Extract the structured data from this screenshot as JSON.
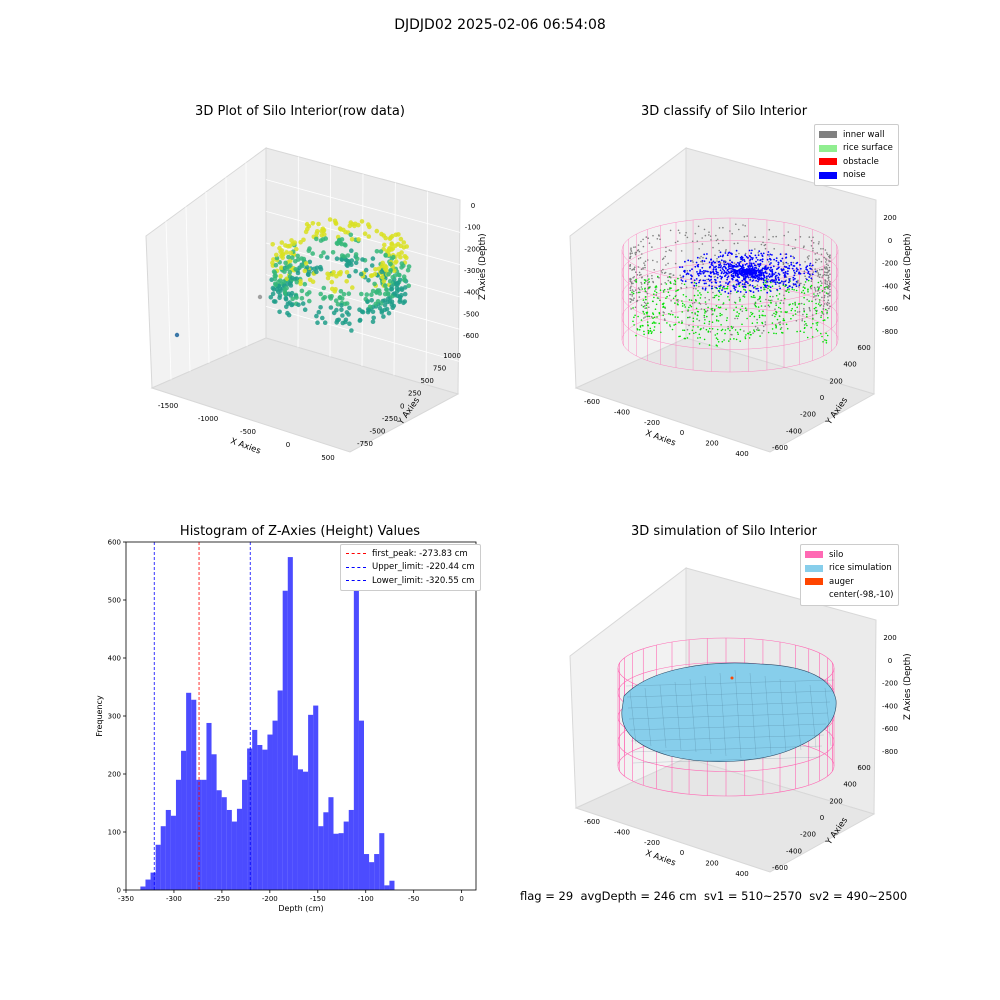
{
  "suptitle": "DJDJD02 2025-02-06 06:54:08",
  "panels": {
    "raw": {
      "title": "3D Plot of Silo Interior(row data)",
      "xlabel": "X Axies",
      "ylabel": "Y Axies",
      "zlabel": "Z Axies (Depth)",
      "xticks": [
        "-1500",
        "-1000",
        "-500",
        "0",
        "500"
      ],
      "yticks": [
        "-750",
        "-500",
        "-250",
        "0",
        "250",
        "500",
        "750",
        "1000"
      ],
      "zticks": [
        "0",
        "-100",
        "-200",
        "-300",
        "-400",
        "-500",
        "-600"
      ]
    },
    "classify": {
      "title": "3D classify of Silo Interior",
      "xlabel": "X Axies",
      "ylabel": "Y Axies",
      "zlabel": "Z Axies (Depth)",
      "xticks": [
        "-600",
        "-400",
        "-200",
        "0",
        "200",
        "400"
      ],
      "yticks": [
        "-600",
        "-400",
        "-200",
        "0",
        "200",
        "400",
        "600"
      ],
      "zticks": [
        "200",
        "0",
        "-200",
        "-400",
        "-600",
        "-800"
      ],
      "legend": [
        {
          "label": "inner wall",
          "color": "#808080"
        },
        {
          "label": "rice surface",
          "color": "#90ee90"
        },
        {
          "label": "obstacle",
          "color": "#ff0000"
        },
        {
          "label": "noise",
          "color": "#0000ff"
        }
      ]
    },
    "simulation": {
      "title": "3D simulation of Silo Interior",
      "xlabel": "X Axies",
      "ylabel": "Y Axies",
      "zlabel": "Z Axies (Depth)",
      "xticks": [
        "-600",
        "-400",
        "-200",
        "0",
        "200",
        "400"
      ],
      "yticks": [
        "-600",
        "-400",
        "-200",
        "0",
        "200",
        "400",
        "600"
      ],
      "zticks": [
        "200",
        "0",
        "-200",
        "-400",
        "-600",
        "-800"
      ],
      "legend": [
        {
          "label": "silo",
          "color": "#ff69b4"
        },
        {
          "label": "rice simulation",
          "color": "#87ceeb"
        },
        {
          "label": "auger",
          "color": "#ff4500"
        },
        {
          "label": "center(-98,-10)",
          "color": ""
        }
      ]
    }
  },
  "status_text": "flag = 29  avgDepth = 246 cm  sv1 = 510~2570  sv2 = 490~2500",
  "chart_data": {
    "type": "bar",
    "title": "Histogram of Z-Axies (Height) Values",
    "xlabel": "Depth (cm)",
    "ylabel": "Frequency",
    "xlim": [
      -350,
      15
    ],
    "ylim": [
      0,
      600
    ],
    "xticks": [
      -350,
      -300,
      -250,
      -200,
      -150,
      -100,
      -50,
      0
    ],
    "yticks": [
      0,
      100,
      200,
      300,
      400,
      500,
      600
    ],
    "bar_color": "#0000ff",
    "bin_start": -335,
    "bin_width": 5.3,
    "values": [
      6,
      18,
      30,
      78,
      110,
      138,
      128,
      190,
      240,
      340,
      328,
      190,
      190,
      288,
      234,
      172,
      160,
      138,
      118,
      140,
      190,
      244,
      276,
      250,
      242,
      268,
      292,
      344,
      516,
      574,
      232,
      208,
      204,
      302,
      318,
      110,
      134,
      160,
      97,
      98,
      118,
      138,
      538,
      292,
      62,
      48,
      62,
      98,
      8,
      16
    ],
    "vlines": [
      {
        "x": -273.83,
        "color": "#ff0000",
        "label": "first_peak: -273.83 cm"
      },
      {
        "x": -220.44,
        "color": "#0000ff",
        "label": "Upper_limit: -220.44 cm"
      },
      {
        "x": -320.55,
        "color": "#0000ff",
        "label": "Lower_limit: -320.55 cm"
      }
    ],
    "legend_position": "top-right"
  }
}
